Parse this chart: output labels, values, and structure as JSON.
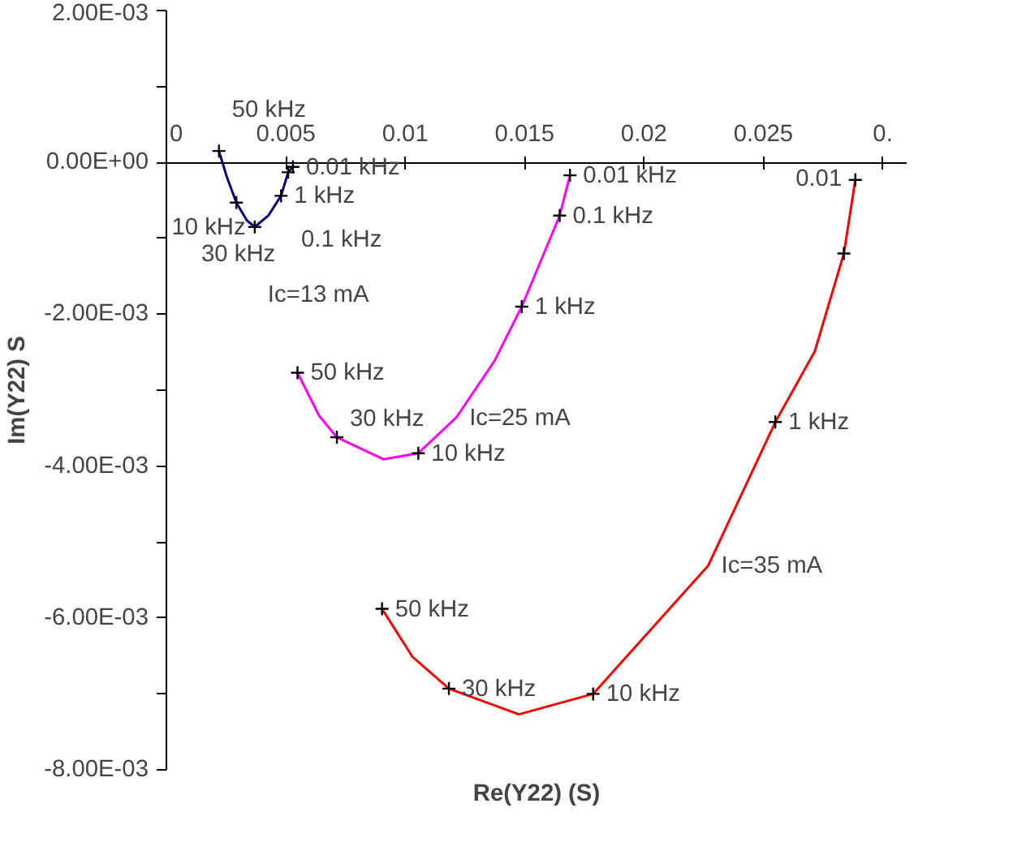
{
  "chart_data": {
    "type": "line",
    "xlabel": "Re(Y22) (S)",
    "ylabel": "Im(Y22) S",
    "xlim": [
      0,
      0.031
    ],
    "xticks": [
      0,
      0.005,
      0.01,
      0.015,
      0.02,
      0.025,
      {
        "value": 0.03,
        "label": "0."
      }
    ],
    "ylim": [
      -0.008,
      0.002
    ],
    "yticks": [
      {
        "value": 0.002,
        "label": "2.00E-03"
      },
      {
        "value": 0.001,
        "label": null
      },
      {
        "value": 0,
        "label": "0.00E+00"
      },
      {
        "value": -0.001,
        "label": null
      },
      {
        "value": -0.002,
        "label": "-2.00E-03"
      },
      {
        "value": -0.003,
        "label": null
      },
      {
        "value": -0.004,
        "label": "-4.00E-03"
      },
      {
        "value": -0.005,
        "label": null
      },
      {
        "value": -0.006,
        "label": "-6.00E-03"
      },
      {
        "value": -0.007,
        "label": null
      },
      {
        "value": -0.008,
        "label": "-8.00E-03"
      }
    ],
    "grid": false,
    "marker": "none",
    "line_style": "solid",
    "series": [
      {
        "name": "Ic=13 mA",
        "color": "#000080",
        "x": [
          0.0022,
          0.00253,
          0.00293,
          0.00336,
          0.0037,
          0.00427,
          0.0048,
          0.0051,
          0.0053
        ],
        "values": [
          0.00015,
          -0.00019,
          -0.00053,
          -0.00076,
          -0.00085,
          -0.0007,
          -0.00044,
          -0.00013,
          -6e-05
        ]
      },
      {
        "name": "Ic=25 mA",
        "color": "#ff00ff",
        "x": [
          0.00549,
          0.0064,
          0.00714,
          0.00909,
          0.01055,
          0.01214,
          0.01373,
          0.01488,
          0.01647,
          0.0169
        ],
        "values": [
          -0.00277,
          -0.00334,
          -0.00362,
          -0.00391,
          -0.00383,
          -0.00336,
          -0.00262,
          -0.0019,
          -0.0007,
          -0.00017
        ]
      },
      {
        "name": "Ic=35 mA",
        "color": "#ff0000",
        "x": [
          0.00903,
          0.0103,
          0.01183,
          0.01476,
          0.01787,
          0.02269,
          0.0255,
          0.02715,
          0.02837,
          0.02885
        ],
        "values": [
          -0.00588,
          -0.00651,
          -0.00693,
          -0.00727,
          -0.007,
          -0.00531,
          -0.00342,
          -0.00249,
          -0.0012,
          -0.00023
        ]
      },
      {
        "type": "scatter",
        "marker": "cross",
        "color": "#000000",
        "x": [
          0.0022,
          0.00293,
          0.0037,
          0.0048,
          0.0051,
          0.0053,
          0.00549,
          0.00714,
          0.01055,
          0.01488,
          0.01647,
          0.0169,
          0.00903,
          0.01183,
          0.01787,
          0.0255,
          0.02837,
          0.02885
        ],
        "values": [
          0.00015,
          -0.00053,
          -0.00085,
          -0.00044,
          -0.00013,
          -6e-05,
          -0.00277,
          -0.00362,
          -0.00383,
          -0.0019,
          -0.0007,
          -0.00017,
          -0.00588,
          -0.00693,
          -0.007,
          -0.00342,
          -0.0012,
          -0.00023
        ]
      }
    ],
    "annotations": [
      {
        "text": "50 kHz",
        "x": 0.0022,
        "y": 0.00015
      },
      {
        "text": "30 kHz",
        "x": 0.00293,
        "y": -0.00053
      },
      {
        "text": "10 kHz",
        "x": 0.0037,
        "y": -0.00085
      },
      {
        "text": "1 kHz",
        "x": 0.0048,
        "y": -0.00044
      },
      {
        "text": "0.1 kHz",
        "x": 0.0051,
        "y": -0.00013
      },
      {
        "text": "0.01 kHz",
        "x": 0.0053,
        "y": -6e-05
      },
      {
        "text": "50 kHz",
        "x": 0.00549,
        "y": -0.00277
      },
      {
        "text": "30 kHz",
        "x": 0.00714,
        "y": -0.00362
      },
      {
        "text": "10 kHz",
        "x": 0.01055,
        "y": -0.00383
      },
      {
        "text": "1 kHz",
        "x": 0.01488,
        "y": -0.0019
      },
      {
        "text": "0.1 kHz",
        "x": 0.01647,
        "y": -0.0007
      },
      {
        "text": "0.01 kHz",
        "x": 0.0169,
        "y": -0.00017
      },
      {
        "text": "50 kHz",
        "x": 0.00903,
        "y": -0.00588
      },
      {
        "text": "30 kHz",
        "x": 0.01183,
        "y": -0.00693
      },
      {
        "text": "10 kHz",
        "x": 0.01787,
        "y": -0.007
      },
      {
        "text": "1 kHz",
        "x": 0.0255,
        "y": -0.00342
      },
      {
        "text": "0.01",
        "x": 0.02885,
        "y": -0.00023
      }
    ]
  }
}
